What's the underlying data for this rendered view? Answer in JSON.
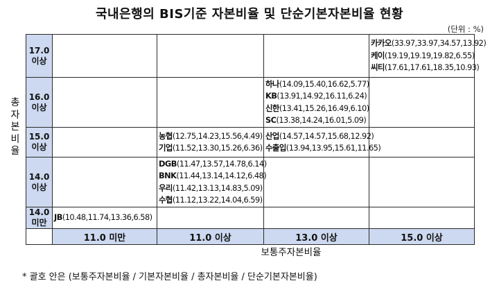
{
  "title": "국내은행의 BIS기준 자본비율 및 단순기본자본비율 현황",
  "unit": "(단위 : %)",
  "y_axis_label": [
    "총",
    "자",
    "본",
    "비",
    "율"
  ],
  "x_axis_label": "보통주자본비율",
  "columns": [
    "11.0 미만",
    "11.0 이상",
    "13.0 이상",
    "15.0 이상"
  ],
  "rows": [
    {
      "label": [
        "17.0",
        "이상"
      ],
      "cells": [
        [],
        [],
        [],
        [
          {
            "bank": "카카오",
            "values": "(33.97,33.97,34.57,13.92)"
          },
          {
            "bank": "케이",
            "values": "(19.19,19.19,19.82,6.55)"
          },
          {
            "bank": "씨티",
            "values": "(17.61,17.61,18.35,10.93)"
          }
        ]
      ]
    },
    {
      "label": [
        "16.0",
        "이상"
      ],
      "cells": [
        [],
        [],
        [
          {
            "bank": "하나",
            "values": "(14.09,15.40,16.62,5.77)"
          },
          {
            "bank": "KB",
            "values": "(13.91,14.92,16.11,6.24)"
          },
          {
            "bank": "신한",
            "values": "(13.41,15.26,16.49,6.10)"
          },
          {
            "bank": "SC",
            "values": "(13.38,14.24,16.01,5.09)"
          }
        ],
        []
      ]
    },
    {
      "label": [
        "15.0",
        "이상"
      ],
      "cells": [
        [],
        [
          {
            "bank": "농협",
            "values": "(12.75,14.23,15.56,4.49)"
          },
          {
            "bank": "기업",
            "values": "(11.52,13.30,15.26,6.36)"
          }
        ],
        [
          {
            "bank": "산업",
            "values": "(14.57,14.57,15.68,12.92)"
          },
          {
            "bank": "수출입",
            "values": "(13.94,13.95,15.61,11.65)"
          }
        ],
        []
      ]
    },
    {
      "label": [
        "14.0",
        "이상"
      ],
      "cells": [
        [],
        [
          {
            "bank": "DGB",
            "values": "(11.47,13.57,14.78,6.14)"
          },
          {
            "bank": "BNK",
            "values": "(11.44,13.14,14.12,6.48)"
          },
          {
            "bank": "우리",
            "values": "(11.42,13.13,14.83,5.09)"
          },
          {
            "bank": "수협",
            "values": "(11.12,13.22,14.04,6.59)"
          }
        ],
        [],
        []
      ]
    },
    {
      "label": [
        "14.0",
        "미만"
      ],
      "cells": [
        [
          {
            "bank": "JB",
            "values": "(10.48,11.74,13.36,6.58)"
          }
        ],
        [],
        [],
        []
      ]
    }
  ],
  "footnote": "* 괄호 안은 (보통주자본비율 / 기본자본비율 / 총자본비율 / 단순기본자본비율)"
}
